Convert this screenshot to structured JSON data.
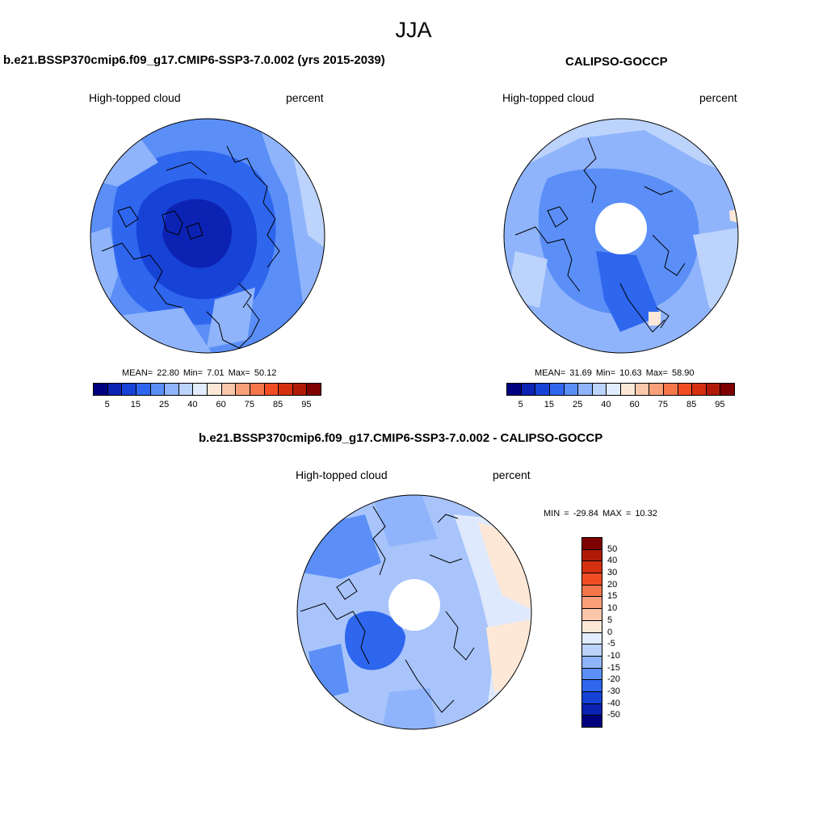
{
  "title": "JJA",
  "panels": [
    {
      "title": "b.e21.BSSP370cmip6.f09_g17.CMIP6-SSP3-7.0.002 (yrs 2015-2039)",
      "variable": "High-topped cloud",
      "units": "percent",
      "stats": {
        "mean_label": "MEAN=",
        "mean": "22.80",
        "min_label": "Min=",
        "min": "7.01",
        "max_label": "Max=",
        "max": "50.12"
      }
    },
    {
      "title": "CALIPSO-GOCCP",
      "variable": "High-topped cloud",
      "units": "percent",
      "stats": {
        "mean_label": "MEAN=",
        "mean": "31.69",
        "min_label": "Min=",
        "min": "10.63",
        "max_label": "Max=",
        "max": "58.90"
      }
    },
    {
      "title": "b.e21.BSSP370cmip6.f09_g17.CMIP6-SSP3-7.0.002 - CALIPSO-GOCCP",
      "variable": "High-topped cloud",
      "units": "percent",
      "minmax": "MIN = -29.84 MAX =  10.32"
    }
  ],
  "colorbar_abs": {
    "colors": [
      "#00007f",
      "#0c22b2",
      "#1742d6",
      "#2f66ee",
      "#5b8ff7",
      "#8fb4fb",
      "#bcd3fc",
      "#e1ecfe",
      "#fde8d8",
      "#fbc7ab",
      "#f9a07a",
      "#f6764c",
      "#f04d24",
      "#d5300f",
      "#b01b08",
      "#7e0000"
    ],
    "tick_labels": [
      "5",
      "15",
      "25",
      "40",
      "60",
      "75",
      "85",
      "95"
    ]
  },
  "colorbar_diff": {
    "colors": [
      "#7e0000",
      "#b01b08",
      "#d5300f",
      "#f04d24",
      "#f6764c",
      "#f9a07a",
      "#fbc7ab",
      "#fde8d8",
      "#e1ecfe",
      "#bcd3fc",
      "#8fb4fb",
      "#5b8ff7",
      "#2f66ee",
      "#1742d6",
      "#0c22b2",
      "#00007f"
    ],
    "tick_labels": [
      "50",
      "40",
      "30",
      "20",
      "15",
      "10",
      "5",
      "0",
      "-5",
      "-10",
      "-15",
      "-20",
      "-30",
      "-40",
      "-50"
    ]
  },
  "colors": {
    "model_base": "#3a6fe8",
    "obs_base": "#9ebdfb",
    "diff_base": "#a8c4fb"
  }
}
